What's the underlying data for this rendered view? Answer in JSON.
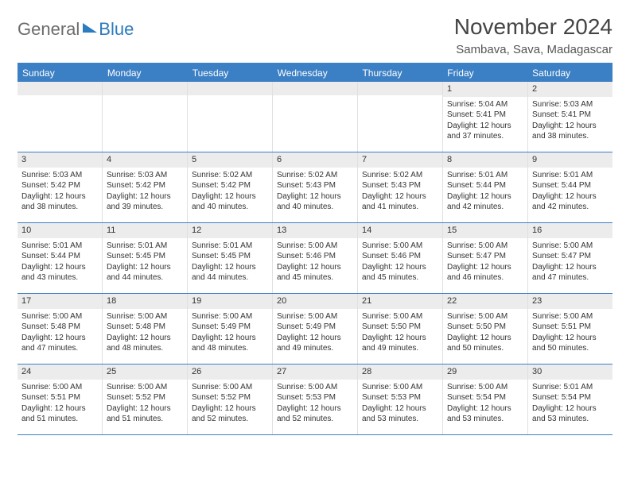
{
  "logo": {
    "general": "General",
    "blue": "Blue"
  },
  "title": "November 2024",
  "location": "Sambava, Sava, Madagascar",
  "colors": {
    "header_bg": "#3b7fc4",
    "header_text": "#ffffff",
    "daynum_bg": "#ececec",
    "cell_border": "#e0e0e0",
    "week_border": "#3b7fc4",
    "text": "#333333",
    "logo_gray": "#6b6b6b",
    "logo_blue": "#2b7bbf"
  },
  "day_names": [
    "Sunday",
    "Monday",
    "Tuesday",
    "Wednesday",
    "Thursday",
    "Friday",
    "Saturday"
  ],
  "weeks": [
    [
      {
        "day": "",
        "sunrise": "",
        "sunset": "",
        "daylight1": "",
        "daylight2": ""
      },
      {
        "day": "",
        "sunrise": "",
        "sunset": "",
        "daylight1": "",
        "daylight2": ""
      },
      {
        "day": "",
        "sunrise": "",
        "sunset": "",
        "daylight1": "",
        "daylight2": ""
      },
      {
        "day": "",
        "sunrise": "",
        "sunset": "",
        "daylight1": "",
        "daylight2": ""
      },
      {
        "day": "",
        "sunrise": "",
        "sunset": "",
        "daylight1": "",
        "daylight2": ""
      },
      {
        "day": "1",
        "sunrise": "Sunrise: 5:04 AM",
        "sunset": "Sunset: 5:41 PM",
        "daylight1": "Daylight: 12 hours",
        "daylight2": "and 37 minutes."
      },
      {
        "day": "2",
        "sunrise": "Sunrise: 5:03 AM",
        "sunset": "Sunset: 5:41 PM",
        "daylight1": "Daylight: 12 hours",
        "daylight2": "and 38 minutes."
      }
    ],
    [
      {
        "day": "3",
        "sunrise": "Sunrise: 5:03 AM",
        "sunset": "Sunset: 5:42 PM",
        "daylight1": "Daylight: 12 hours",
        "daylight2": "and 38 minutes."
      },
      {
        "day": "4",
        "sunrise": "Sunrise: 5:03 AM",
        "sunset": "Sunset: 5:42 PM",
        "daylight1": "Daylight: 12 hours",
        "daylight2": "and 39 minutes."
      },
      {
        "day": "5",
        "sunrise": "Sunrise: 5:02 AM",
        "sunset": "Sunset: 5:42 PM",
        "daylight1": "Daylight: 12 hours",
        "daylight2": "and 40 minutes."
      },
      {
        "day": "6",
        "sunrise": "Sunrise: 5:02 AM",
        "sunset": "Sunset: 5:43 PM",
        "daylight1": "Daylight: 12 hours",
        "daylight2": "and 40 minutes."
      },
      {
        "day": "7",
        "sunrise": "Sunrise: 5:02 AM",
        "sunset": "Sunset: 5:43 PM",
        "daylight1": "Daylight: 12 hours",
        "daylight2": "and 41 minutes."
      },
      {
        "day": "8",
        "sunrise": "Sunrise: 5:01 AM",
        "sunset": "Sunset: 5:44 PM",
        "daylight1": "Daylight: 12 hours",
        "daylight2": "and 42 minutes."
      },
      {
        "day": "9",
        "sunrise": "Sunrise: 5:01 AM",
        "sunset": "Sunset: 5:44 PM",
        "daylight1": "Daylight: 12 hours",
        "daylight2": "and 42 minutes."
      }
    ],
    [
      {
        "day": "10",
        "sunrise": "Sunrise: 5:01 AM",
        "sunset": "Sunset: 5:44 PM",
        "daylight1": "Daylight: 12 hours",
        "daylight2": "and 43 minutes."
      },
      {
        "day": "11",
        "sunrise": "Sunrise: 5:01 AM",
        "sunset": "Sunset: 5:45 PM",
        "daylight1": "Daylight: 12 hours",
        "daylight2": "and 44 minutes."
      },
      {
        "day": "12",
        "sunrise": "Sunrise: 5:01 AM",
        "sunset": "Sunset: 5:45 PM",
        "daylight1": "Daylight: 12 hours",
        "daylight2": "and 44 minutes."
      },
      {
        "day": "13",
        "sunrise": "Sunrise: 5:00 AM",
        "sunset": "Sunset: 5:46 PM",
        "daylight1": "Daylight: 12 hours",
        "daylight2": "and 45 minutes."
      },
      {
        "day": "14",
        "sunrise": "Sunrise: 5:00 AM",
        "sunset": "Sunset: 5:46 PM",
        "daylight1": "Daylight: 12 hours",
        "daylight2": "and 45 minutes."
      },
      {
        "day": "15",
        "sunrise": "Sunrise: 5:00 AM",
        "sunset": "Sunset: 5:47 PM",
        "daylight1": "Daylight: 12 hours",
        "daylight2": "and 46 minutes."
      },
      {
        "day": "16",
        "sunrise": "Sunrise: 5:00 AM",
        "sunset": "Sunset: 5:47 PM",
        "daylight1": "Daylight: 12 hours",
        "daylight2": "and 47 minutes."
      }
    ],
    [
      {
        "day": "17",
        "sunrise": "Sunrise: 5:00 AM",
        "sunset": "Sunset: 5:48 PM",
        "daylight1": "Daylight: 12 hours",
        "daylight2": "and 47 minutes."
      },
      {
        "day": "18",
        "sunrise": "Sunrise: 5:00 AM",
        "sunset": "Sunset: 5:48 PM",
        "daylight1": "Daylight: 12 hours",
        "daylight2": "and 48 minutes."
      },
      {
        "day": "19",
        "sunrise": "Sunrise: 5:00 AM",
        "sunset": "Sunset: 5:49 PM",
        "daylight1": "Daylight: 12 hours",
        "daylight2": "and 48 minutes."
      },
      {
        "day": "20",
        "sunrise": "Sunrise: 5:00 AM",
        "sunset": "Sunset: 5:49 PM",
        "daylight1": "Daylight: 12 hours",
        "daylight2": "and 49 minutes."
      },
      {
        "day": "21",
        "sunrise": "Sunrise: 5:00 AM",
        "sunset": "Sunset: 5:50 PM",
        "daylight1": "Daylight: 12 hours",
        "daylight2": "and 49 minutes."
      },
      {
        "day": "22",
        "sunrise": "Sunrise: 5:00 AM",
        "sunset": "Sunset: 5:50 PM",
        "daylight1": "Daylight: 12 hours",
        "daylight2": "and 50 minutes."
      },
      {
        "day": "23",
        "sunrise": "Sunrise: 5:00 AM",
        "sunset": "Sunset: 5:51 PM",
        "daylight1": "Daylight: 12 hours",
        "daylight2": "and 50 minutes."
      }
    ],
    [
      {
        "day": "24",
        "sunrise": "Sunrise: 5:00 AM",
        "sunset": "Sunset: 5:51 PM",
        "daylight1": "Daylight: 12 hours",
        "daylight2": "and 51 minutes."
      },
      {
        "day": "25",
        "sunrise": "Sunrise: 5:00 AM",
        "sunset": "Sunset: 5:52 PM",
        "daylight1": "Daylight: 12 hours",
        "daylight2": "and 51 minutes."
      },
      {
        "day": "26",
        "sunrise": "Sunrise: 5:00 AM",
        "sunset": "Sunset: 5:52 PM",
        "daylight1": "Daylight: 12 hours",
        "daylight2": "and 52 minutes."
      },
      {
        "day": "27",
        "sunrise": "Sunrise: 5:00 AM",
        "sunset": "Sunset: 5:53 PM",
        "daylight1": "Daylight: 12 hours",
        "daylight2": "and 52 minutes."
      },
      {
        "day": "28",
        "sunrise": "Sunrise: 5:00 AM",
        "sunset": "Sunset: 5:53 PM",
        "daylight1": "Daylight: 12 hours",
        "daylight2": "and 53 minutes."
      },
      {
        "day": "29",
        "sunrise": "Sunrise: 5:00 AM",
        "sunset": "Sunset: 5:54 PM",
        "daylight1": "Daylight: 12 hours",
        "daylight2": "and 53 minutes."
      },
      {
        "day": "30",
        "sunrise": "Sunrise: 5:01 AM",
        "sunset": "Sunset: 5:54 PM",
        "daylight1": "Daylight: 12 hours",
        "daylight2": "and 53 minutes."
      }
    ]
  ]
}
